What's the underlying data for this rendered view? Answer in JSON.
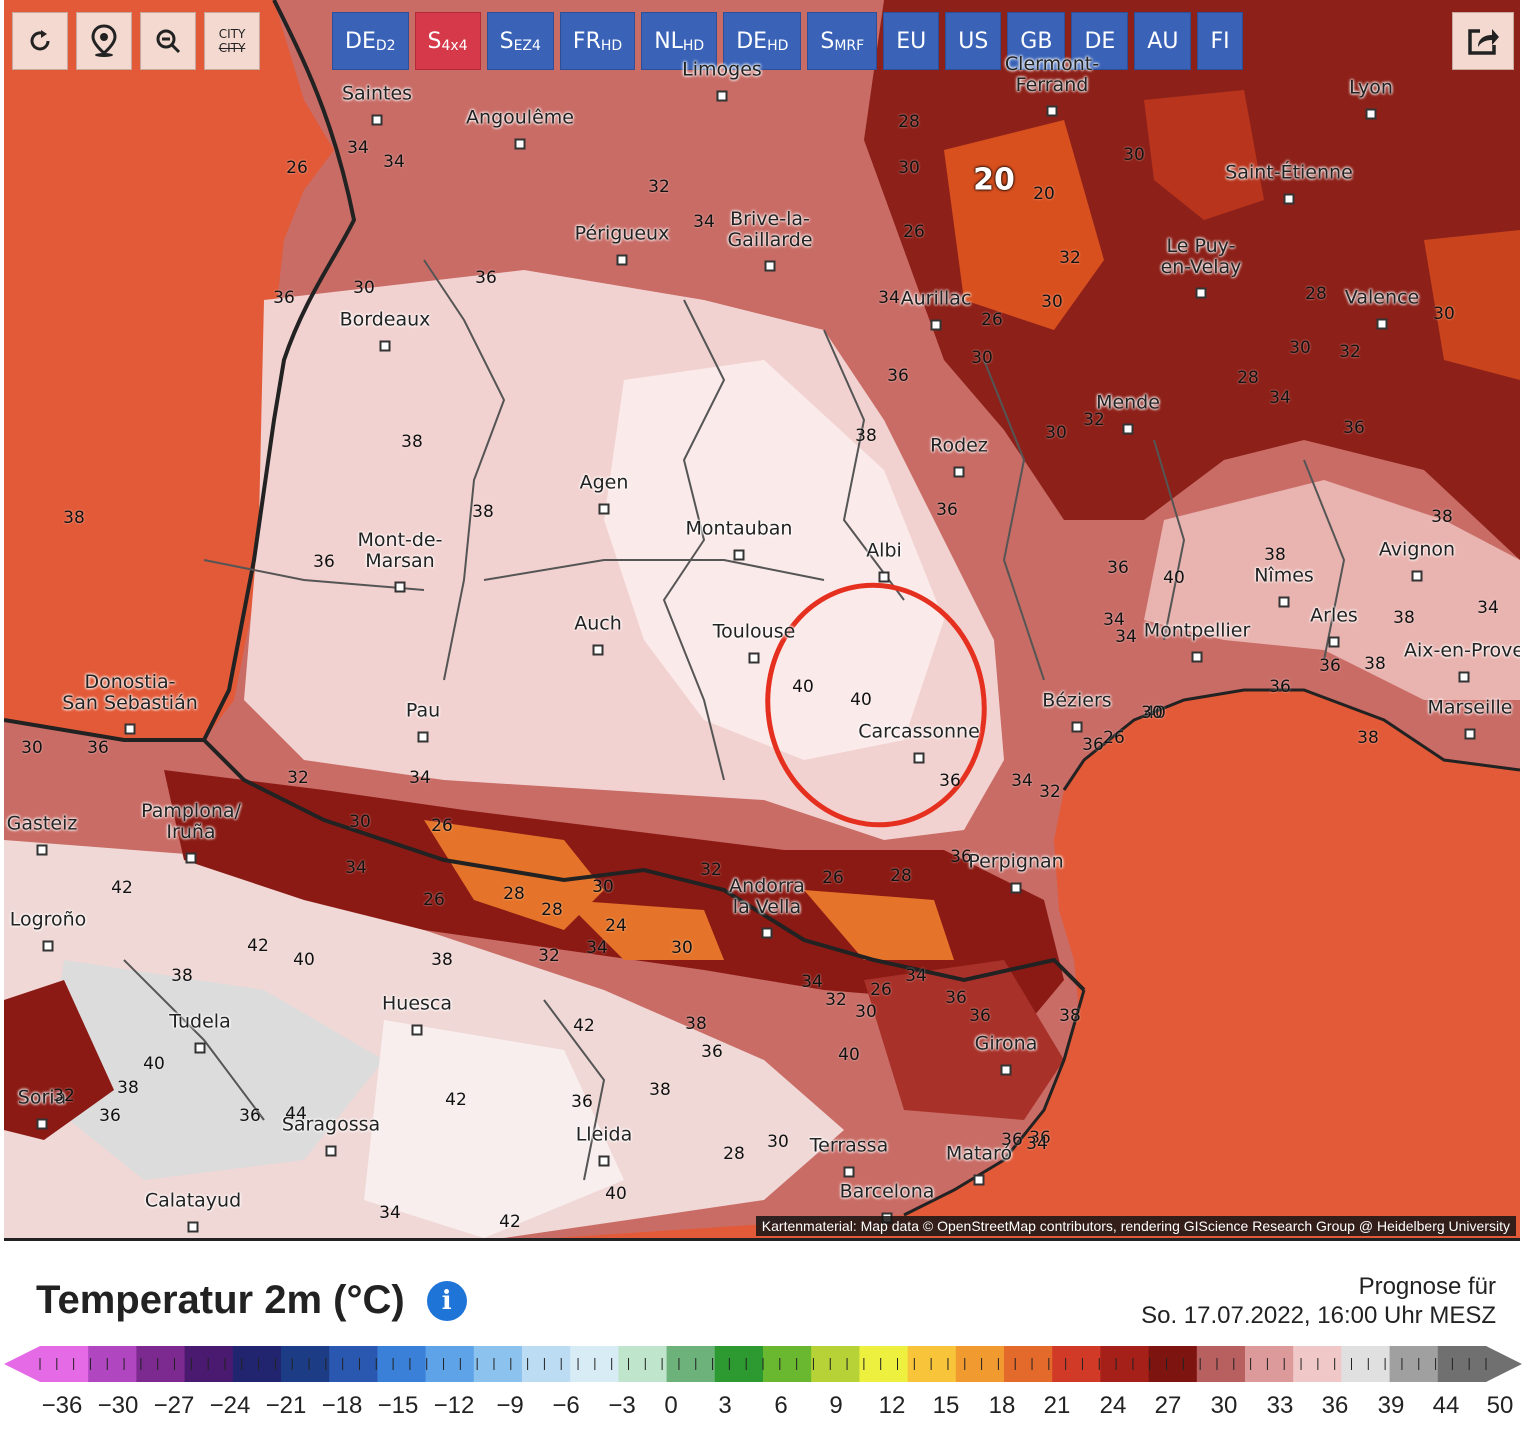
{
  "toolbar": {
    "reload_icon": "reload-icon",
    "location_icon": "location-pin-icon",
    "zoom_icon": "zoom-out-icon",
    "city_label_top": "CITY",
    "city_label_bottom": "CITY",
    "share_icon": "share-icon"
  },
  "models": [
    {
      "main": "DE",
      "sub": "D2",
      "active": false
    },
    {
      "main": "S",
      "sub": "4x4",
      "active": true
    },
    {
      "main": "S",
      "sub": "EZ4",
      "active": false
    },
    {
      "main": "FR",
      "sub": "HD",
      "active": false
    },
    {
      "main": "NL",
      "sub": "HD",
      "active": false
    },
    {
      "main": "DE",
      "sub": "HD",
      "active": false
    },
    {
      "main": "S",
      "sub": "MRF",
      "active": false
    },
    {
      "main": "EU",
      "sub": "",
      "active": false
    },
    {
      "main": "US",
      "sub": "",
      "active": false
    },
    {
      "main": "GB",
      "sub": "",
      "active": false
    },
    {
      "main": "DE",
      "sub": "",
      "active": false
    },
    {
      "main": "AU",
      "sub": "",
      "active": false
    },
    {
      "main": "FI",
      "sub": "",
      "active": false
    }
  ],
  "map": {
    "cities": [
      "Saintes",
      "Angoulême",
      "Limoges",
      "Clermont-Ferrand",
      "Lyon",
      "Périgueux",
      "Brive-la-Gaillarde",
      "Saint-Étienne",
      "Le Puy-en-Velay",
      "Valence",
      "Bordeaux",
      "Aurillac",
      "Mende",
      "Rodez",
      "Agen",
      "Montauban",
      "Albi",
      "Mont-de-Marsan",
      "Nîmes",
      "Avignon",
      "Auch",
      "Toulouse",
      "Montpellier",
      "Arles",
      "Aix-en-Provence",
      "Donostia-San Sebastián",
      "Pau",
      "Béziers",
      "Carcassonne",
      "Marseille",
      "Vitoria-Gasteiz",
      "Pamplona/Iruña",
      "Perpignan",
      "Andorra la Vella",
      "Logroño",
      "Huesca",
      "Tudela",
      "Girona",
      "Soria",
      "Saragossa",
      "Lleida",
      "Terrassa",
      "Mataró",
      "Barcelona",
      "Calatayud"
    ],
    "isotherm_labels": [
      "34",
      "34",
      "26",
      "28",
      "30",
      "30",
      "20",
      "26",
      "32",
      "34",
      "36",
      "34",
      "36",
      "30",
      "32",
      "30",
      "28",
      "32",
      "30",
      "30",
      "28",
      "30",
      "26",
      "30",
      "32",
      "36",
      "36",
      "38",
      "38",
      "34",
      "36",
      "38",
      "36",
      "36",
      "38",
      "40",
      "40",
      "40",
      "38",
      "34",
      "36",
      "34",
      "38",
      "34",
      "38",
      "36",
      "38",
      "36",
      "40",
      "36",
      "32",
      "34",
      "36",
      "30",
      "36",
      "38",
      "32",
      "34",
      "30",
      "26",
      "28",
      "24",
      "30",
      "34",
      "32",
      "28",
      "26",
      "34",
      "30",
      "32",
      "26",
      "28",
      "34",
      "30",
      "26",
      "32",
      "34",
      "36",
      "36",
      "38",
      "36",
      "40",
      "42",
      "38",
      "40",
      "42",
      "42",
      "38",
      "40",
      "38",
      "36",
      "44",
      "42",
      "38",
      "36",
      "40",
      "42",
      "34",
      "28",
      "30",
      "36",
      "32",
      "38",
      "36",
      "36",
      "30",
      "26",
      "34"
    ],
    "isotherm_big": "20",
    "attribution": "Kartenmaterial: Map data © OpenStreetMap contributors, rendering GIScience Research Group @ Heidelberg University",
    "annotation": "red circle around Toulouse–Albi–Carcassonne area",
    "colors": {
      "sea": "#e25a38",
      "hot": "#f6dcdc",
      "hottest": "#d5d5d5",
      "mountain": "#8b1a14"
    }
  },
  "legend": {
    "title": "Temperatur 2m (°C)",
    "info_icon": "info-icon",
    "forecast_line1": "Prognose für",
    "forecast_line2": "So. 17.07.2022, 16:00 Uhr MESZ",
    "ticks": [
      "−36",
      "−30",
      "−27",
      "−24",
      "−21",
      "−18",
      "−15",
      "−12",
      "−9",
      "−6",
      "−3",
      "0",
      "3",
      "6",
      "9",
      "12",
      "15",
      "18",
      "21",
      "24",
      "27",
      "30",
      "33",
      "36",
      "39",
      "44",
      "50"
    ],
    "gradient": [
      "#e46ae6",
      "#b046c0",
      "#7c2a90",
      "#4a1a70",
      "#21246e",
      "#1d3c86",
      "#2a58b0",
      "#3a7fd8",
      "#5ea3e8",
      "#8cc3ee",
      "#bcdcf4",
      "#d8ecf6",
      "#bfe6cc",
      "#6cb27a",
      "#2c9a30",
      "#6ab830",
      "#b6d236",
      "#eef040",
      "#f8c43a",
      "#f19a30",
      "#e46a2c",
      "#d23a28",
      "#a42018",
      "#7e1410",
      "#b86060",
      "#dc9a9a",
      "#f0c8c8",
      "#e0e0e0",
      "#a0a0a0",
      "#707070"
    ]
  }
}
